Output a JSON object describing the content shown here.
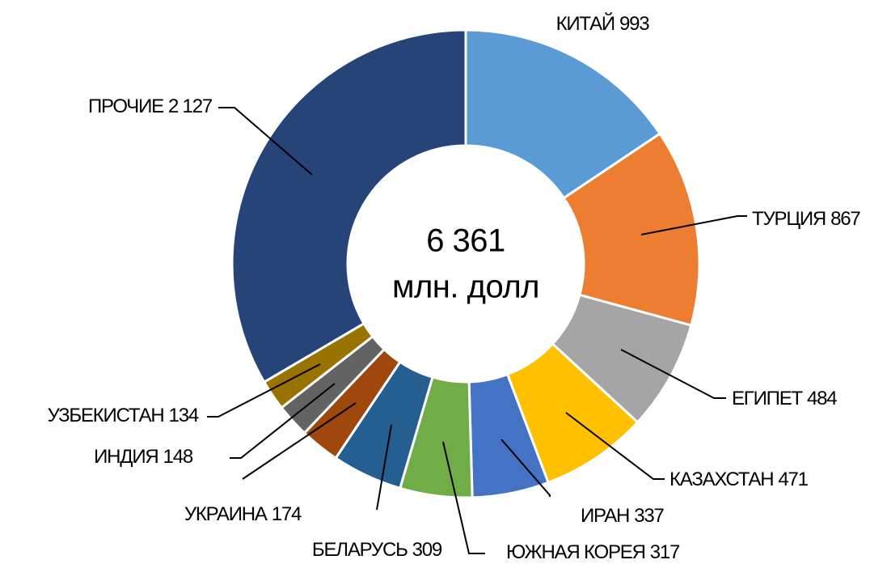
{
  "chart_data": {
    "type": "donut",
    "categories": [
      "КИТАЙ",
      "ТУРЦИЯ",
      "ЕГИПЕТ",
      "КАЗАХСТАН",
      "ИРАН",
      "ЮЖНАЯ КОРЕЯ",
      "БЕЛАРУСЬ",
      "УКРАИНА",
      "ИНДИЯ",
      "УЗБЕКИСТАН",
      "ПРОЧИЕ"
    ],
    "values": [
      993,
      867,
      484,
      471,
      337,
      317,
      309,
      174,
      148,
      134,
      2127
    ],
    "value_labels": [
      "993",
      "867",
      "484",
      "471",
      "337",
      "317",
      "309",
      "174",
      "148",
      "134",
      "2 127"
    ],
    "colors": [
      "#5b9bd5",
      "#ed7d31",
      "#a5a5a5",
      "#ffc000",
      "#4472c4",
      "#70ad47",
      "#255e91",
      "#9e480e",
      "#636363",
      "#997300",
      "#264478"
    ],
    "total": {
      "value": 6361,
      "label": "6 361"
    },
    "unit": "млн. долл"
  }
}
